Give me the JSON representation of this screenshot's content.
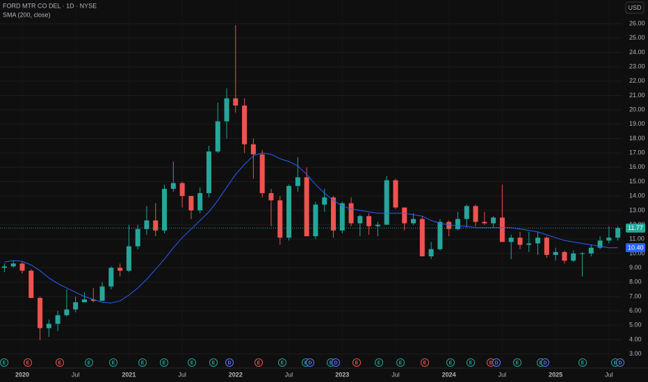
{
  "chart_data": {
    "type": "candlestick",
    "title": "FORD MTR CO DEL · 1D · NYSE",
    "currency": "USD",
    "categories": [
      null,
      null,
      "2020",
      null,
      null,
      null,
      null,
      null,
      "Jul",
      null,
      null,
      null,
      null,
      null,
      "2021",
      null,
      null,
      null,
      null,
      null,
      "Jul",
      null,
      null,
      null,
      null,
      null,
      "2022",
      null,
      null,
      null,
      null,
      null,
      "Jul",
      null,
      null,
      null,
      null,
      null,
      "2023",
      null,
      null,
      null,
      null,
      null,
      "Jul",
      null,
      null,
      null,
      null,
      null,
      "2024",
      null,
      null,
      null,
      null,
      null,
      "Jul",
      null,
      null,
      null,
      null,
      null,
      "2025",
      null,
      null,
      null,
      null,
      null,
      "Jul",
      null
    ],
    "open": [
      9.0,
      9.1,
      9.3,
      8.8,
      6.9,
      4.8,
      5.1,
      5.7,
      6.1,
      6.6,
      6.8,
      6.7,
      7.7,
      9.0,
      8.8,
      10.5,
      11.7,
      12.3,
      11.6,
      14.5,
      14.9,
      14.0,
      13.0,
      14.2,
      17.1,
      19.2,
      20.8,
      20.3,
      17.6,
      16.9,
      14.2,
      13.7,
      11.1,
      14.7,
      15.3,
      11.2,
      13.4,
      13.9,
      11.6,
      13.5,
      12.1,
      12.6,
      11.9,
      12.0,
      15.1,
      13.2,
      12.1,
      12.4,
      9.8,
      10.3,
      12.2,
      11.7,
      12.4,
      13.3,
      12.2,
      12.1,
      12.5,
      10.8,
      11.1,
      10.6,
      10.7,
      11.1,
      9.9,
      10.1,
      9.5,
      10.0,
      10.0,
      10.4,
      10.9,
      11.1
    ],
    "high": [
      9.3,
      9.5,
      9.4,
      8.9,
      7.0,
      5.4,
      6.0,
      7.5,
      7.0,
      7.3,
      7.6,
      8.0,
      9.1,
      9.3,
      12.0,
      12.0,
      13.3,
      13.5,
      14.8,
      16.4,
      15.0,
      14.0,
      14.6,
      17.5,
      20.5,
      21.5,
      25.9,
      20.8,
      18.0,
      17.2,
      14.5,
      14.0,
      14.8,
      16.7,
      16.0,
      13.6,
      14.5,
      14.0,
      13.6,
      13.9,
      12.7,
      12.8,
      12.2,
      15.4,
      15.2,
      13.2,
      12.8,
      12.6,
      10.8,
      12.4,
      12.3,
      12.9,
      13.4,
      13.4,
      12.9,
      12.6,
      14.8,
      11.3,
      11.5,
      11.5,
      11.5,
      11.2,
      10.4,
      10.2,
      10.2,
      10.1,
      10.6,
      11.2,
      11.9,
      11.9
    ],
    "low": [
      8.7,
      9.0,
      8.6,
      6.9,
      3.96,
      4.2,
      4.6,
      5.6,
      5.9,
      6.6,
      6.6,
      6.7,
      7.5,
      8.4,
      8.7,
      10.3,
      11.3,
      11.2,
      11.4,
      14.3,
      13.2,
      12.4,
      12.8,
      13.9,
      17.0,
      18.0,
      19.8,
      17.0,
      15.2,
      13.9,
      11.9,
      10.6,
      10.9,
      14.3,
      11.2,
      11.0,
      12.9,
      11.1,
      11.4,
      11.9,
      11.2,
      11.3,
      11.2,
      12.0,
      13.1,
      11.6,
      12.0,
      9.8,
      9.6,
      10.2,
      11.2,
      11.6,
      11.8,
      11.9,
      12.0,
      11.8,
      10.8,
      9.6,
      10.3,
      10.1,
      9.9,
      9.7,
      9.5,
      9.3,
      9.4,
      8.4,
      9.8,
      10.3,
      10.7,
      10.9
    ],
    "close": [
      9.1,
      9.3,
      8.8,
      6.9,
      4.8,
      5.1,
      5.7,
      6.1,
      6.6,
      6.8,
      6.7,
      7.7,
      9.0,
      8.8,
      10.5,
      11.7,
      12.3,
      11.6,
      14.5,
      14.9,
      14.0,
      13.0,
      14.2,
      17.1,
      19.2,
      20.8,
      20.3,
      17.6,
      16.9,
      14.2,
      13.7,
      11.1,
      14.7,
      15.3,
      11.2,
      13.4,
      13.9,
      11.6,
      13.5,
      12.1,
      12.6,
      11.9,
      12.0,
      15.1,
      13.2,
      12.1,
      12.4,
      9.8,
      10.3,
      12.2,
      11.7,
      12.4,
      13.3,
      12.2,
      12.1,
      12.5,
      10.8,
      11.1,
      10.6,
      10.7,
      11.1,
      9.9,
      10.1,
      9.5,
      10.0,
      10.0,
      10.4,
      10.9,
      11.1,
      11.77
    ],
    "up_color": "#26a69a",
    "down_color": "#ef5350",
    "series": [
      {
        "name": "SMA (200, close)",
        "color": "#2962ff",
        "last_value_label": "10.40",
        "values": [
          9.4,
          9.5,
          9.45,
          9.2,
          8.8,
          8.3,
          7.9,
          7.6,
          7.3,
          7.0,
          6.8,
          6.6,
          6.55,
          6.7,
          7.1,
          7.6,
          8.2,
          8.9,
          9.6,
          10.4,
          11.1,
          11.7,
          12.3,
          12.9,
          13.7,
          14.6,
          15.5,
          16.2,
          16.8,
          17.0,
          16.9,
          16.6,
          16.4,
          16.1,
          15.5,
          14.8,
          14.2,
          13.7,
          13.3,
          13.1,
          13.0,
          12.9,
          12.8,
          12.8,
          12.8,
          12.8,
          12.7,
          12.6,
          12.3,
          12.1,
          12.0,
          11.9,
          11.9,
          11.8,
          11.8,
          11.8,
          11.8,
          11.8,
          11.7,
          11.6,
          11.5,
          11.3,
          11.1,
          10.9,
          10.8,
          10.7,
          10.6,
          10.5,
          10.4,
          10.4
        ]
      }
    ],
    "ylim": [
      2.5,
      27.65
    ],
    "yticks": [
      {
        "value": 3,
        "label": "3.00"
      },
      {
        "value": 4,
        "label": "4.00"
      },
      {
        "value": 5,
        "label": "5.00"
      },
      {
        "value": 6,
        "label": "6.00"
      },
      {
        "value": 7,
        "label": "7.00"
      },
      {
        "value": 8,
        "label": "8.00"
      },
      {
        "value": 9,
        "label": "9.00"
      },
      {
        "value": 10,
        "label": "10.00"
      },
      {
        "value": 11,
        "label": "11.00"
      },
      {
        "value": 12,
        "label": "12.00"
      },
      {
        "value": 13,
        "label": "13.00"
      },
      {
        "value": 14,
        "label": "14.00"
      },
      {
        "value": 15,
        "label": "15.00"
      },
      {
        "value": 16,
        "label": "16.00"
      },
      {
        "value": 17,
        "label": "17.00"
      },
      {
        "value": 18,
        "label": "18.00"
      },
      {
        "value": 19,
        "label": "19.00"
      },
      {
        "value": 20,
        "label": "20.00"
      },
      {
        "value": 21,
        "label": "21.00"
      },
      {
        "value": 22,
        "label": "22.00"
      },
      {
        "value": 23,
        "label": "23.00"
      },
      {
        "value": 24,
        "label": "24.00"
      },
      {
        "value": 25,
        "label": "25.00"
      },
      {
        "value": 26,
        "label": "26.00"
      }
    ],
    "grid": true,
    "events": [
      "E",
      "E",
      "E",
      "E",
      "E",
      "E",
      "E",
      "E",
      "E",
      "D",
      "E",
      "E",
      "E",
      "D",
      "E",
      "D",
      "E",
      "E",
      "E",
      "E",
      "E",
      "E",
      "E",
      "D",
      "E",
      "E",
      "D",
      "E",
      "E",
      "D"
    ]
  }
}
